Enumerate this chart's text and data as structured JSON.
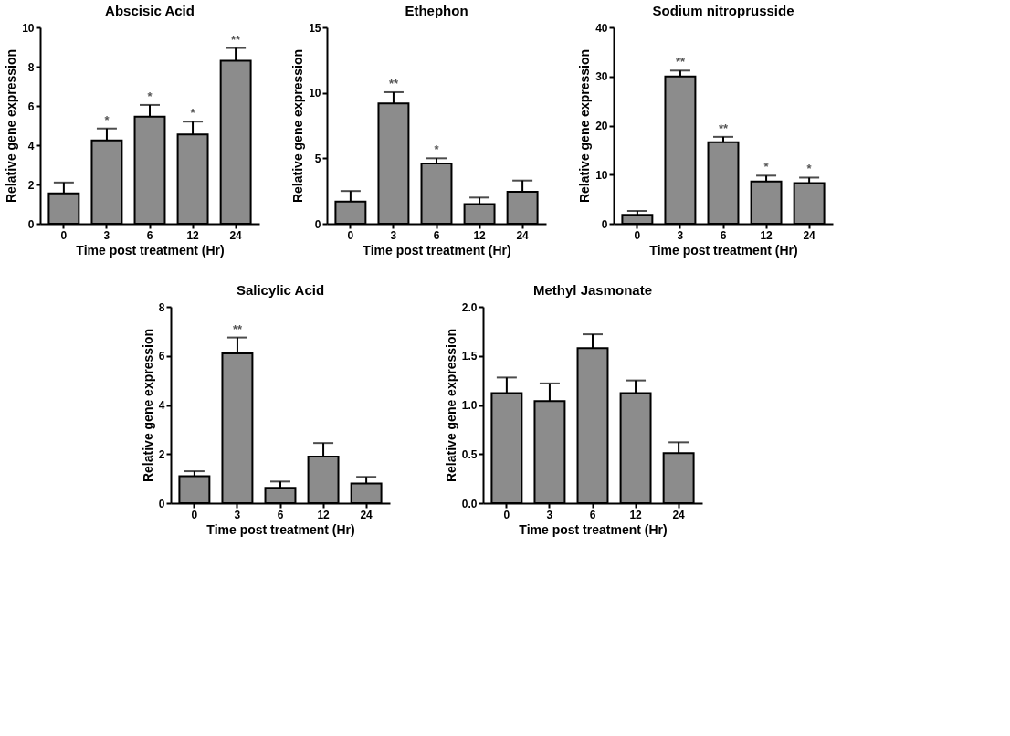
{
  "chart_data": [
    {
      "type": "bar",
      "title": "Abscisic Acid",
      "xlabel": "Time post treatment (Hr)",
      "ylabel": "Relative gene expression",
      "categories": [
        "0",
        "3",
        "6",
        "12",
        "24"
      ],
      "values": [
        1.55,
        4.25,
        5.45,
        4.55,
        8.3
      ],
      "errors": [
        [
          1.55,
          2.1
        ],
        [
          4.25,
          4.85
        ],
        [
          5.45,
          6.05
        ],
        [
          4.55,
          5.2
        ],
        [
          8.3,
          8.95
        ]
      ],
      "color": "#8c8c8c",
      "ylim": [
        0,
        10
      ],
      "yticks": [
        0,
        2,
        4,
        6,
        8,
        10
      ],
      "annotations": [
        {
          "text": "*",
          "x": "3",
          "y": 4.85
        },
        {
          "text": "*",
          "x": "6",
          "y": 6.05
        },
        {
          "text": "*",
          "x": "12",
          "y": 5.2
        },
        {
          "text": "**",
          "x": "24",
          "y": 8.95
        }
      ]
    },
    {
      "type": "bar",
      "title": "Ethephon",
      "xlabel": "Time post treatment (Hr)",
      "ylabel": "Relative gene expression",
      "categories": [
        "0",
        "3",
        "6",
        "12",
        "24"
      ],
      "values": [
        1.7,
        9.2,
        4.6,
        1.5,
        2.45
      ],
      "errors": [
        [
          1.7,
          2.5
        ],
        [
          9.2,
          10.05
        ],
        [
          4.6,
          5.0
        ],
        [
          1.5,
          2.0
        ],
        [
          2.45,
          3.3
        ]
      ],
      "color": "#8c8c8c",
      "ylim": [
        0,
        15
      ],
      "yticks": [
        0,
        5,
        10,
        15
      ],
      "annotations": [
        {
          "text": "**",
          "x": "3",
          "y": 10.05
        },
        {
          "text": "*",
          "x": "6",
          "y": 5.0
        }
      ]
    },
    {
      "type": "bar",
      "title": "Sodium nitroprusside",
      "xlabel": "Time post treatment (Hr)",
      "ylabel": "Relative gene expression",
      "categories": [
        "0",
        "3",
        "6",
        "12",
        "24"
      ],
      "values": [
        1.8,
        30,
        16.6,
        8.6,
        8.3
      ],
      "errors": [
        [
          1.8,
          2.6
        ],
        [
          30,
          31.2
        ],
        [
          16.6,
          17.7
        ],
        [
          8.6,
          9.8
        ],
        [
          8.3,
          9.4
        ]
      ],
      "color": "#8c8c8c",
      "ylim": [
        0,
        40
      ],
      "yticks": [
        0,
        10,
        20,
        30,
        40
      ],
      "annotations": [
        {
          "text": "**",
          "x": "3",
          "y": 31.2
        },
        {
          "text": "**",
          "x": "6",
          "y": 17.7
        },
        {
          "text": "*",
          "x": "12",
          "y": 9.8
        },
        {
          "text": "*",
          "x": "24",
          "y": 9.4
        }
      ]
    },
    {
      "type": "bar",
      "title": "Salicylic Acid",
      "xlabel": "Time post treatment (Hr)",
      "ylabel": "Relative gene expression",
      "categories": [
        "0",
        "3",
        "6",
        "12",
        "24"
      ],
      "values": [
        1.1,
        6.1,
        0.62,
        1.9,
        0.8
      ],
      "errors": [
        [
          1.1,
          1.3
        ],
        [
          6.1,
          6.75
        ],
        [
          0.62,
          0.88
        ],
        [
          1.9,
          2.45
        ],
        [
          0.8,
          1.07
        ]
      ],
      "color": "#8c8c8c",
      "ylim": [
        0,
        8
      ],
      "yticks": [
        0,
        2,
        4,
        6,
        8
      ],
      "annotations": [
        {
          "text": "**",
          "x": "3",
          "y": 6.75
        }
      ]
    },
    {
      "type": "bar",
      "title": "Methyl Jasmonate",
      "xlabel": "Time post treatment (Hr)",
      "ylabel": "Relative gene expression",
      "categories": [
        "0",
        "3",
        "6",
        "12",
        "24"
      ],
      "values": [
        1.12,
        1.04,
        1.58,
        1.12,
        0.51
      ],
      "errors": [
        [
          1.12,
          1.28
        ],
        [
          1.04,
          1.22
        ],
        [
          1.58,
          1.72
        ],
        [
          1.12,
          1.25
        ],
        [
          0.51,
          0.62
        ]
      ],
      "color": "#8c8c8c",
      "ylim": [
        0,
        2
      ],
      "yticks": [
        {
          "value": 0,
          "label": "0.0"
        },
        0.5,
        {
          "value": 1,
          "label": "1.0"
        },
        1.5,
        {
          "value": 2,
          "label": "2.0"
        }
      ]
    }
  ]
}
